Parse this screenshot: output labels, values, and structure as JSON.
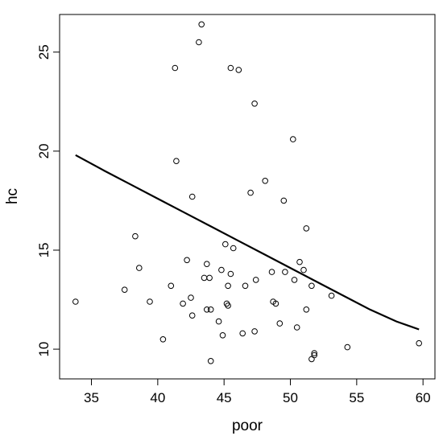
{
  "chart_data": {
    "type": "scatter",
    "title": "",
    "xlabel": "poor",
    "ylabel": "hc",
    "xlim": [
      32.6,
      60.9
    ],
    "ylim": [
      8.5,
      26.9
    ],
    "xticks": [
      35,
      40,
      45,
      50,
      55,
      60
    ],
    "xtick_labels": [
      "35",
      "40",
      "45",
      "50",
      "55",
      "60"
    ],
    "yticks": [
      10,
      15,
      20,
      25
    ],
    "ytick_labels": [
      "10",
      "15",
      "20",
      "25"
    ],
    "grid": false,
    "legend": "none",
    "colors": {
      "points": "#000000",
      "line": "#000000",
      "background": "#ffffff"
    },
    "series": [
      {
        "type": "scatter",
        "marker": "open-circle",
        "points": [
          [
            33.8,
            12.4
          ],
          [
            37.5,
            13.0
          ],
          [
            38.3,
            15.7
          ],
          [
            38.6,
            14.1
          ],
          [
            39.4,
            12.4
          ],
          [
            40.4,
            10.5
          ],
          [
            41.0,
            13.2
          ],
          [
            41.3,
            24.2
          ],
          [
            41.4,
            19.5
          ],
          [
            41.9,
            12.3
          ],
          [
            42.2,
            14.5
          ],
          [
            42.5,
            12.6
          ],
          [
            42.6,
            11.7
          ],
          [
            42.6,
            17.7
          ],
          [
            43.1,
            25.5
          ],
          [
            43.3,
            26.4
          ],
          [
            43.5,
            13.6
          ],
          [
            43.7,
            14.3
          ],
          [
            43.7,
            12.0
          ],
          [
            43.9,
            13.6
          ],
          [
            44.0,
            12.0
          ],
          [
            44.0,
            9.4
          ],
          [
            44.6,
            11.4
          ],
          [
            44.8,
            14.0
          ],
          [
            44.9,
            10.7
          ],
          [
            45.1,
            15.3
          ],
          [
            45.2,
            12.3
          ],
          [
            45.3,
            12.2
          ],
          [
            45.3,
            13.2
          ],
          [
            45.5,
            13.8
          ],
          [
            45.5,
            24.2
          ],
          [
            45.7,
            15.1
          ],
          [
            46.1,
            24.1
          ],
          [
            46.4,
            10.8
          ],
          [
            46.6,
            13.2
          ],
          [
            47.0,
            17.9
          ],
          [
            47.3,
            10.9
          ],
          [
            47.3,
            22.4
          ],
          [
            47.4,
            13.5
          ],
          [
            48.1,
            18.5
          ],
          [
            48.6,
            13.9
          ],
          [
            48.7,
            12.4
          ],
          [
            48.9,
            12.3
          ],
          [
            49.2,
            11.3
          ],
          [
            49.5,
            17.5
          ],
          [
            49.6,
            13.9
          ],
          [
            50.2,
            20.6
          ],
          [
            50.3,
            13.5
          ],
          [
            50.5,
            11.1
          ],
          [
            50.7,
            14.4
          ],
          [
            51.0,
            14.0
          ],
          [
            51.2,
            16.1
          ],
          [
            51.2,
            12.0
          ],
          [
            51.6,
            13.2
          ],
          [
            51.6,
            9.5
          ],
          [
            51.8,
            9.8
          ],
          [
            51.8,
            9.7
          ],
          [
            53.1,
            12.7
          ],
          [
            54.3,
            10.1
          ],
          [
            59.7,
            10.3
          ]
        ]
      },
      {
        "type": "line",
        "style": "smooth-fit",
        "points": [
          [
            33.8,
            19.8
          ],
          [
            36,
            19.0
          ],
          [
            38,
            18.3
          ],
          [
            40,
            17.6
          ],
          [
            42,
            16.9
          ],
          [
            44,
            16.2
          ],
          [
            46,
            15.5
          ],
          [
            48,
            14.8
          ],
          [
            50,
            14.1
          ],
          [
            52,
            13.4
          ],
          [
            54,
            12.7
          ],
          [
            56,
            12.0
          ],
          [
            58,
            11.4
          ],
          [
            59.7,
            11.0
          ]
        ]
      }
    ]
  }
}
